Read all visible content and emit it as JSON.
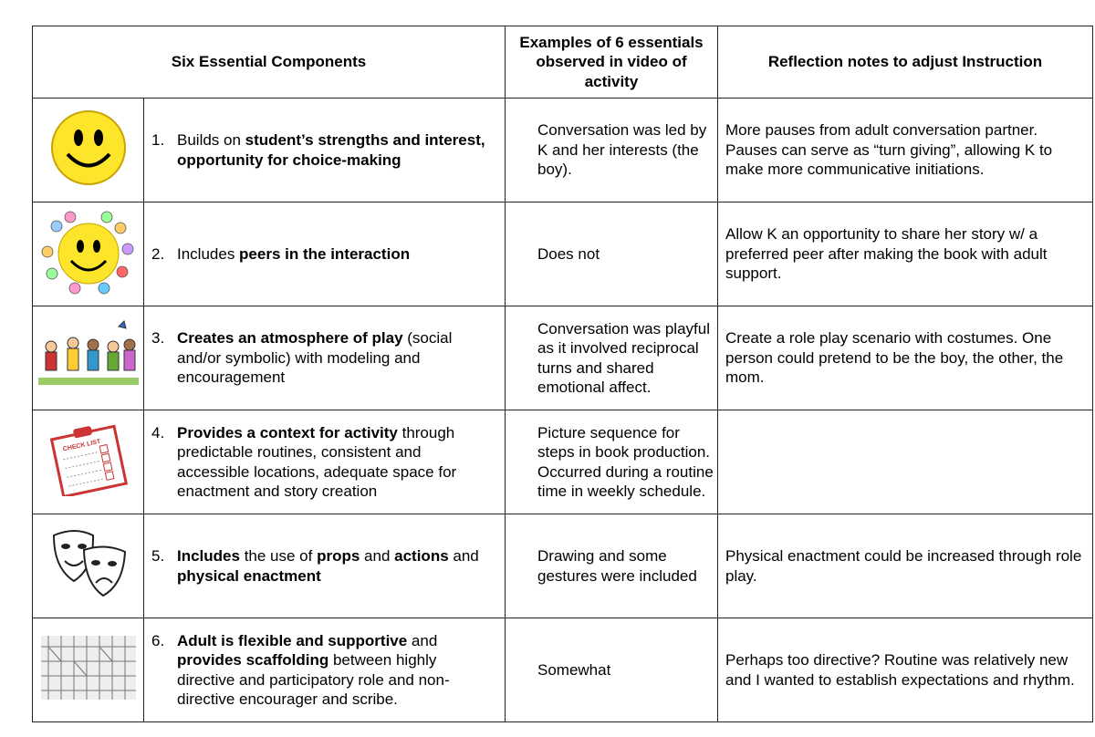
{
  "headers": {
    "components": "Six Essential Components",
    "examples": "Examples of 6 essentials observed in video of activity",
    "reflection": "Reflection notes to adjust Instruction"
  },
  "rows": [
    {
      "icon": "smiley-face-icon",
      "number": "1.",
      "component": [
        {
          "text": "Builds on ",
          "bold": false
        },
        {
          "text": "student’s strengths and interest, opportunity for choice-making",
          "bold": true
        }
      ],
      "example": "Conversation was led by K and her interests (the boy).",
      "reflection": "More pauses from adult conversation partner. Pauses can serve as “turn giving”, allowing K to make more communicative initiations."
    },
    {
      "icon": "smiley-group-icon",
      "number": "2.",
      "component": [
        {
          "text": "Includes ",
          "bold": false
        },
        {
          "text": "peers in the interaction",
          "bold": true
        }
      ],
      "example": "Does not",
      "reflection": "Allow K an opportunity to share her story w/ a preferred peer after making the book with adult support."
    },
    {
      "icon": "children-playing-icon",
      "number": "3.",
      "component": [
        {
          "text": "Creates an atmosphere of play",
          "bold": true
        },
        {
          "text": " (social and/or symbolic) with modeling and encouragement",
          "bold": false
        }
      ],
      "example": "Conversation was playful as it involved reciprocal turns and shared emotional affect.",
      "reflection": "Create a role play scenario with costumes. One person could pretend to be the boy, the other, the mom."
    },
    {
      "icon": "checklist-clipboard-icon",
      "icon_text": "CHECK LIST",
      "number": "4.",
      "component": [
        {
          "text": "Provides a context for activity",
          "bold": true
        },
        {
          "text": " through predictable routines, consistent and accessible locations, adequate space for enactment and story creation",
          "bold": false
        }
      ],
      "example": "Picture sequence for steps in book production. Occurred during a routine time in weekly schedule.",
      "reflection": ""
    },
    {
      "icon": "theater-masks-icon",
      "number": "5.",
      "component": [
        {
          "text": "Includes",
          "bold": true
        },
        {
          "text": " the use of ",
          "bold": false
        },
        {
          "text": "props",
          "bold": true
        },
        {
          "text": " and ",
          "bold": false
        },
        {
          "text": "actions",
          "bold": true
        },
        {
          "text": " and ",
          "bold": false
        },
        {
          "text": "physical enactment",
          "bold": true
        }
      ],
      "example": "Drawing and some gestures were included",
      "reflection": "Physical enactment could be increased through role play."
    },
    {
      "icon": "scaffolding-icon",
      "number": "6.",
      "component": [
        {
          "text": "Adult is flexible and supportive",
          "bold": true
        },
        {
          "text": " and ",
          "bold": false
        },
        {
          "text": "provides scaffolding",
          "bold": true
        },
        {
          "text": " between highly directive and participatory role and non-directive encourager and scribe.",
          "bold": false
        }
      ],
      "example": "Somewhat",
      "reflection": "Perhaps too directive? Routine was relatively new and I wanted to establish expectations and rhythm."
    }
  ]
}
